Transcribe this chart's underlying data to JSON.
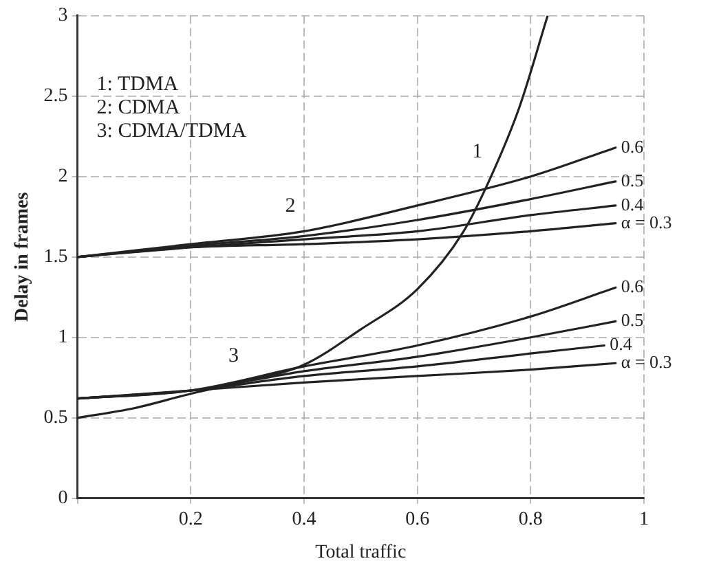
{
  "chart_data": {
    "type": "line",
    "xlabel": "Total traffic",
    "ylabel": "Delay in frames",
    "x": [
      0,
      0.2,
      0.4,
      0.6,
      0.8,
      0.95
    ],
    "xlim": [
      0,
      1
    ],
    "xticks": [
      {
        "value": 0,
        "label": null
      },
      0.2,
      0.4,
      0.6,
      0.8,
      1
    ],
    "ylim": [
      0,
      3
    ],
    "yticks": [
      0,
      0.5,
      1,
      1.5,
      2,
      2.5,
      3
    ],
    "grid": true,
    "legend": false,
    "marker": "none",
    "line_style": "solid",
    "series": [
      {
        "color": "#222222",
        "x": [
          0,
          0.1,
          0.2,
          0.3,
          0.4,
          0.5,
          0.6,
          0.68,
          0.73,
          0.78,
          0.83
        ],
        "values": [
          0.5,
          0.56,
          0.65,
          0.73,
          0.83,
          1.05,
          1.3,
          1.65,
          2.0,
          2.43,
          3.0
        ]
      },
      {
        "name": "0.6",
        "color": "#222222",
        "values": [
          1.5,
          1.58,
          1.66,
          1.82,
          2.0,
          2.18
        ]
      },
      {
        "name": "0.5",
        "color": "#222222",
        "values": [
          1.5,
          1.57,
          1.63,
          1.73,
          1.86,
          1.97
        ]
      },
      {
        "name": "0.4",
        "color": "#222222",
        "values": [
          1.5,
          1.56,
          1.61,
          1.66,
          1.76,
          1.82
        ]
      },
      {
        "name": "α = 0.3",
        "color": "#222222",
        "values": [
          1.5,
          1.56,
          1.58,
          1.61,
          1.66,
          1.71
        ]
      },
      {
        "name": "0.6",
        "color": "#222222",
        "values": [
          0.62,
          0.67,
          0.82,
          0.95,
          1.13,
          1.31
        ]
      },
      {
        "name": "0.5",
        "color": "#222222",
        "values": [
          0.62,
          0.67,
          0.79,
          0.88,
          1.0,
          1.1
        ]
      },
      {
        "name": "0.4",
        "color": "#222222",
        "x": [
          0,
          0.2,
          0.4,
          0.6,
          0.8,
          0.93
        ],
        "values": [
          0.62,
          0.67,
          0.76,
          0.82,
          0.9,
          0.95
        ]
      },
      {
        "name": "α = 0.3",
        "color": "#222222",
        "values": [
          0.62,
          0.67,
          0.72,
          0.76,
          0.8,
          0.84
        ]
      }
    ],
    "annotations": [
      "1: TDMA",
      "2: CDMA",
      "3: CDMA/TDMA",
      {
        "text": "1",
        "x": 0.73,
        "y": 2.0
      },
      {
        "text": "2",
        "x": 0.4,
        "y": 1.66
      },
      {
        "text": "3",
        "x": 0.3,
        "y": 0.73
      }
    ]
  }
}
